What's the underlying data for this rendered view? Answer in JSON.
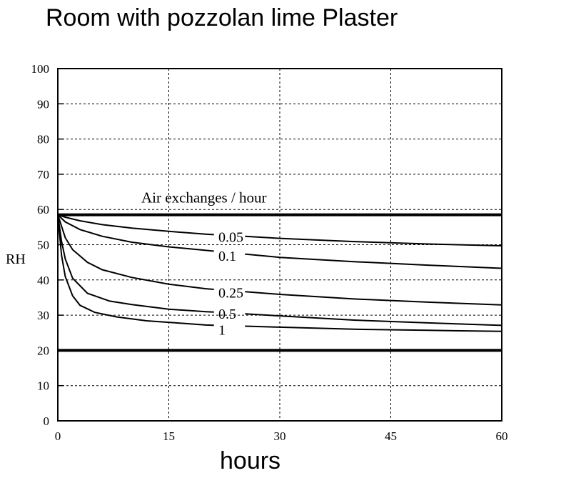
{
  "chart_data": {
    "type": "line",
    "title": "Room with pozzolan lime Plaster",
    "xlabel": "hours",
    "ylabel": "RH",
    "xlim": [
      0,
      60
    ],
    "ylim": [
      0,
      100
    ],
    "xticks": [
      0,
      15,
      30,
      45,
      60
    ],
    "yticks": [
      0,
      10,
      20,
      30,
      40,
      50,
      60,
      70,
      80,
      90,
      100
    ],
    "grid": true,
    "annotation": "Air exchanges / hour",
    "reference_lines": [
      {
        "y": 58.5
      },
      {
        "y": 20
      }
    ],
    "series": [
      {
        "name": "0.05",
        "x": [
          0,
          1,
          3,
          6,
          10,
          15,
          20,
          30,
          40,
          50,
          60
        ],
        "y": [
          58.5,
          57.8,
          56.8,
          55.7,
          54.7,
          53.8,
          53.0,
          51.8,
          50.9,
          50.2,
          49.7
        ]
      },
      {
        "name": "0.1",
        "x": [
          0,
          1,
          3,
          6,
          10,
          15,
          20,
          30,
          40,
          50,
          60
        ],
        "y": [
          58.5,
          56.5,
          54.3,
          52.4,
          50.7,
          49.4,
          48.4,
          46.4,
          45.2,
          44.2,
          43.3
        ]
      },
      {
        "name": "0.25",
        "x": [
          0,
          1,
          2,
          4,
          6,
          10,
          15,
          20,
          30,
          40,
          50,
          60
        ],
        "y": [
          58.5,
          52.0,
          48.6,
          45.0,
          42.9,
          40.7,
          38.8,
          37.5,
          35.9,
          34.6,
          33.7,
          32.9
        ]
      },
      {
        "name": "0.5",
        "x": [
          0,
          0.5,
          1,
          2,
          4,
          7,
          10,
          15,
          20,
          30,
          40,
          50,
          60
        ],
        "y": [
          58.5,
          51.0,
          46.0,
          40.5,
          36.2,
          34.0,
          33.0,
          31.7,
          31.0,
          29.8,
          28.6,
          27.8,
          27.1
        ]
      },
      {
        "name": "1",
        "x": [
          0,
          0.5,
          1,
          2,
          3,
          5,
          8,
          12,
          16,
          20,
          30,
          40,
          50,
          60
        ],
        "y": [
          58.5,
          47.0,
          41.0,
          35.5,
          32.8,
          30.8,
          29.5,
          28.4,
          27.8,
          27.2,
          26.6,
          26.0,
          25.7,
          25.4
        ]
      }
    ],
    "label_positions": [
      {
        "label": "0.05",
        "x": 21.7,
        "y": 52.2
      },
      {
        "label": "0.1",
        "x": 21.7,
        "y": 46.9
      },
      {
        "label": "0.25",
        "x": 21.7,
        "y": 36.4
      },
      {
        "label": "0.5",
        "x": 21.7,
        "y": 30.4
      },
      {
        "label": "1",
        "x": 21.7,
        "y": 25.9
      }
    ]
  }
}
